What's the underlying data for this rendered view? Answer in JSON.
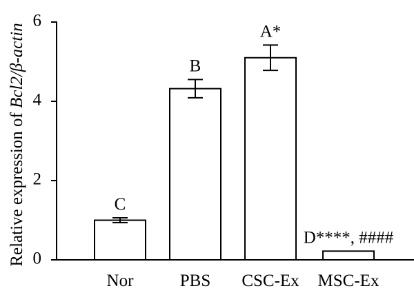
{
  "chart_data": {
    "type": "bar",
    "categories": [
      "Nor",
      "PBS",
      "CSC-Ex",
      "MSC-Ex"
    ],
    "values": [
      1.0,
      4.32,
      5.1,
      0.22
    ],
    "errors": [
      0.06,
      0.23,
      0.32,
      0.0
    ],
    "annotations": [
      {
        "letter": "C",
        "suffix": ""
      },
      {
        "letter": "B",
        "suffix": ""
      },
      {
        "letter": "A",
        "suffix": "*"
      },
      {
        "letter": "D",
        "suffix": "****, ####"
      }
    ],
    "ylabel": {
      "prefix": "Relative expression of ",
      "italic": "Bcl2/β-actin"
    },
    "ylim": [
      0,
      6
    ],
    "yticks": [
      0,
      2,
      4,
      6
    ],
    "grid": false
  }
}
